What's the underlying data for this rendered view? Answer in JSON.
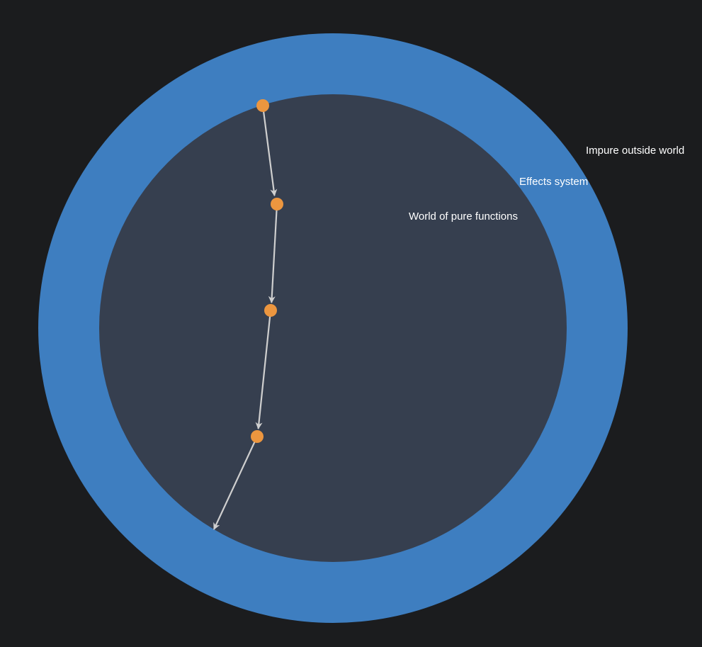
{
  "labels": {
    "outer": "Impure outside world",
    "middle": "Effects system",
    "inner": "World of pure functions"
  },
  "colors": {
    "background": "#1b1c1e",
    "effects_ring": "#3e7ec0",
    "pure_world": "#363f4f",
    "node": "#ec963f",
    "arrow": "#cfcfcf",
    "text": "#ffffff"
  },
  "flow": {
    "node_count": 4,
    "exits_to": "Effects system"
  }
}
